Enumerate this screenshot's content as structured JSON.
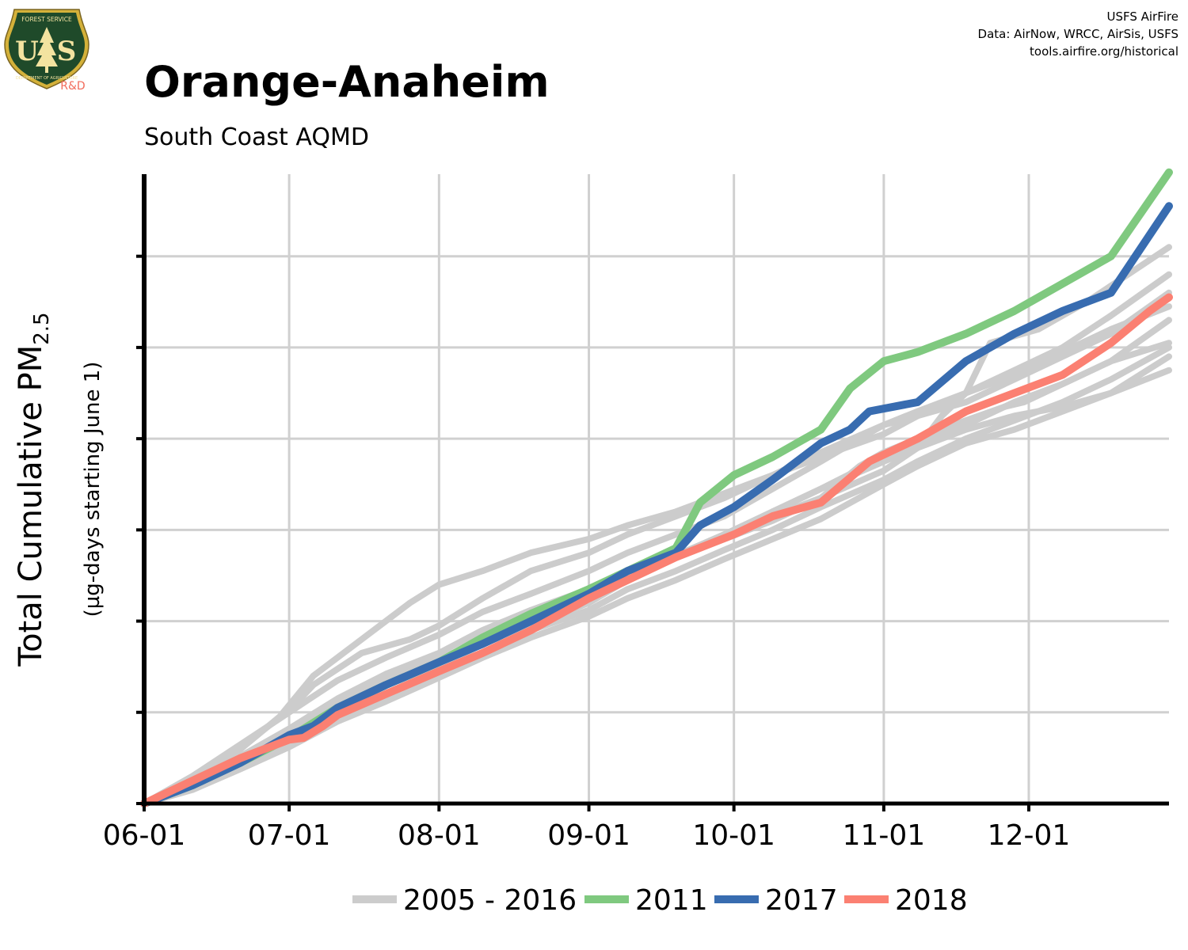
{
  "header": {
    "title": "Orange-Anaheim",
    "subtitle": "South Coast AQMD",
    "credits": [
      "USFS AirFire",
      "Data: AirNow, WRCC, AirSis, USFS",
      "tools.airfire.org/historical"
    ],
    "logo": {
      "name": "usfs-shield-logo",
      "top_text": "FOREST SERVICE",
      "letters": [
        "U",
        "S"
      ],
      "bottom_text": "DEPARTMENT OF AGRICULTURE",
      "badge": "R&D",
      "colors": {
        "shield": "#1f4a2a",
        "trim": "#d4b13a",
        "badge": "#f26b5b"
      }
    }
  },
  "chart_data": {
    "type": "line",
    "ylabel_main": "Total Cumulative PM",
    "ylabel_sub": "2.5",
    "ylabel_units": "(µg-days starting June 1)",
    "x_ticks": [
      "06-01",
      "07-01",
      "08-01",
      "09-01",
      "10-01",
      "11-01",
      "12-01"
    ],
    "x_tick_days": [
      0,
      30,
      61,
      92,
      122,
      153,
      183
    ],
    "xlim": [
      0,
      212
    ],
    "ylim": [
      0,
      6.9
    ],
    "y_gridlines": [
      1,
      2,
      3,
      4,
      5,
      6
    ],
    "y_tick_labels_shown": false,
    "grid": true,
    "legend_position": "bottom",
    "legend": [
      {
        "label": "2005 - 2016",
        "color": "#cccccc"
      },
      {
        "label": "2011",
        "color": "#7fc97f"
      },
      {
        "label": "2017",
        "color": "#386cb0"
      },
      {
        "label": "2018",
        "color": "#fb8072"
      }
    ],
    "background_series": [
      {
        "name": "2005 - 2016",
        "color": "#cccccc",
        "points": [
          [
            0,
            0
          ],
          [
            10,
            0.25
          ],
          [
            20,
            0.6
          ],
          [
            28,
            0.95
          ],
          [
            35,
            1.4
          ],
          [
            45,
            1.8
          ],
          [
            55,
            2.2
          ],
          [
            61,
            2.4
          ],
          [
            70,
            2.55
          ],
          [
            80,
            2.75
          ],
          [
            92,
            2.9
          ],
          [
            100,
            3.05
          ],
          [
            110,
            3.2
          ],
          [
            120,
            3.4
          ],
          [
            130,
            3.6
          ],
          [
            145,
            3.9
          ],
          [
            153,
            4.05
          ],
          [
            160,
            4.25
          ],
          [
            170,
            4.5
          ],
          [
            180,
            4.75
          ],
          [
            190,
            5.0
          ],
          [
            200,
            5.35
          ],
          [
            212,
            5.8
          ]
        ]
      },
      {
        "name": "2005 - 2016",
        "color": "#cccccc",
        "points": [
          [
            0,
            0
          ],
          [
            10,
            0.3
          ],
          [
            20,
            0.65
          ],
          [
            30,
            1.0
          ],
          [
            40,
            1.35
          ],
          [
            50,
            1.6
          ],
          [
            61,
            1.85
          ],
          [
            70,
            2.1
          ],
          [
            80,
            2.3
          ],
          [
            92,
            2.55
          ],
          [
            100,
            2.75
          ],
          [
            110,
            2.95
          ],
          [
            120,
            3.15
          ],
          [
            130,
            3.45
          ],
          [
            140,
            3.75
          ],
          [
            148,
            4.0
          ],
          [
            153,
            4.15
          ],
          [
            160,
            4.25
          ],
          [
            170,
            4.4
          ],
          [
            180,
            4.65
          ],
          [
            190,
            4.9
          ],
          [
            200,
            5.15
          ],
          [
            212,
            5.6
          ]
        ]
      },
      {
        "name": "2005 - 2016",
        "color": "#cccccc",
        "points": [
          [
            0,
            0
          ],
          [
            10,
            0.2
          ],
          [
            20,
            0.45
          ],
          [
            30,
            0.75
          ],
          [
            40,
            1.05
          ],
          [
            50,
            1.3
          ],
          [
            61,
            1.5
          ],
          [
            70,
            1.75
          ],
          [
            80,
            1.95
          ],
          [
            92,
            2.2
          ],
          [
            100,
            2.45
          ],
          [
            110,
            2.7
          ],
          [
            120,
            2.95
          ],
          [
            130,
            3.2
          ],
          [
            140,
            3.45
          ],
          [
            153,
            3.8
          ],
          [
            160,
            3.95
          ],
          [
            170,
            4.15
          ],
          [
            180,
            4.4
          ],
          [
            190,
            4.6
          ],
          [
            200,
            4.85
          ],
          [
            212,
            5.05
          ]
        ]
      },
      {
        "name": "2005 - 2016",
        "color": "#cccccc",
        "points": [
          [
            0,
            0
          ],
          [
            10,
            0.22
          ],
          [
            20,
            0.5
          ],
          [
            30,
            0.8
          ],
          [
            40,
            1.1
          ],
          [
            50,
            1.35
          ],
          [
            61,
            1.58
          ],
          [
            70,
            1.8
          ],
          [
            80,
            2.05
          ],
          [
            92,
            2.3
          ],
          [
            100,
            2.5
          ],
          [
            110,
            2.72
          ],
          [
            120,
            2.95
          ],
          [
            130,
            3.15
          ],
          [
            140,
            3.35
          ],
          [
            153,
            3.65
          ],
          [
            160,
            3.9
          ],
          [
            165,
            4.25
          ],
          [
            170,
            4.5
          ],
          [
            180,
            4.7
          ],
          [
            190,
            4.95
          ],
          [
            200,
            5.2
          ],
          [
            212,
            5.45
          ]
        ]
      },
      {
        "name": "2005 - 2016",
        "color": "#cccccc",
        "points": [
          [
            0,
            0
          ],
          [
            10,
            0.25
          ],
          [
            20,
            0.52
          ],
          [
            30,
            0.82
          ],
          [
            40,
            1.15
          ],
          [
            50,
            1.42
          ],
          [
            61,
            1.65
          ],
          [
            70,
            1.9
          ],
          [
            80,
            2.12
          ],
          [
            92,
            2.35
          ],
          [
            100,
            2.55
          ],
          [
            110,
            2.72
          ],
          [
            120,
            2.9
          ],
          [
            130,
            3.1
          ],
          [
            140,
            3.35
          ],
          [
            148,
            3.7
          ],
          [
            153,
            3.85
          ],
          [
            160,
            4.0
          ],
          [
            170,
            4.2
          ],
          [
            178,
            4.35
          ],
          [
            182,
            4.4
          ],
          [
            190,
            4.6
          ],
          [
            200,
            4.85
          ],
          [
            212,
            5.3
          ]
        ]
      },
      {
        "name": "2005 - 2016",
        "color": "#cccccc",
        "points": [
          [
            0,
            0
          ],
          [
            10,
            0.28
          ],
          [
            20,
            0.62
          ],
          [
            30,
            1.02
          ],
          [
            35,
            1.3
          ],
          [
            45,
            1.65
          ],
          [
            55,
            1.8
          ],
          [
            61,
            1.95
          ],
          [
            70,
            2.25
          ],
          [
            80,
            2.55
          ],
          [
            92,
            2.75
          ],
          [
            100,
            2.95
          ],
          [
            110,
            3.15
          ],
          [
            120,
            3.35
          ],
          [
            130,
            3.6
          ],
          [
            140,
            3.85
          ],
          [
            153,
            4.15
          ],
          [
            160,
            4.3
          ],
          [
            170,
            4.5
          ],
          [
            175,
            5.05
          ],
          [
            185,
            5.2
          ],
          [
            195,
            5.5
          ],
          [
            212,
            6.1
          ]
        ]
      },
      {
        "name": "2005 - 2016",
        "color": "#cccccc",
        "points": [
          [
            0,
            0
          ],
          [
            10,
            0.15
          ],
          [
            20,
            0.38
          ],
          [
            30,
            0.62
          ],
          [
            40,
            0.9
          ],
          [
            50,
            1.12
          ],
          [
            61,
            1.38
          ],
          [
            70,
            1.6
          ],
          [
            80,
            1.82
          ],
          [
            92,
            2.05
          ],
          [
            100,
            2.25
          ],
          [
            110,
            2.45
          ],
          [
            120,
            2.68
          ],
          [
            130,
            2.9
          ],
          [
            140,
            3.12
          ],
          [
            153,
            3.5
          ],
          [
            160,
            3.7
          ],
          [
            170,
            3.95
          ],
          [
            180,
            4.1
          ],
          [
            190,
            4.3
          ],
          [
            200,
            4.5
          ],
          [
            212,
            4.75
          ]
        ]
      },
      {
        "name": "2005 - 2016",
        "color": "#cccccc",
        "points": [
          [
            0,
            0
          ],
          [
            10,
            0.2
          ],
          [
            20,
            0.45
          ],
          [
            30,
            0.75
          ],
          [
            40,
            1.05
          ],
          [
            50,
            1.3
          ],
          [
            61,
            1.55
          ],
          [
            70,
            1.78
          ],
          [
            80,
            2.02
          ],
          [
            92,
            2.25
          ],
          [
            100,
            2.48
          ],
          [
            110,
            2.7
          ],
          [
            120,
            2.92
          ],
          [
            130,
            3.2
          ],
          [
            140,
            3.45
          ],
          [
            153,
            3.75
          ],
          [
            160,
            3.9
          ],
          [
            170,
            4.1
          ],
          [
            180,
            4.25
          ],
          [
            190,
            4.35
          ],
          [
            200,
            4.5
          ],
          [
            212,
            4.9
          ]
        ]
      },
      {
        "name": "2005 - 2016",
        "color": "#cccccc",
        "points": [
          [
            0,
            0
          ],
          [
            10,
            0.18
          ],
          [
            20,
            0.4
          ],
          [
            30,
            0.65
          ],
          [
            40,
            0.92
          ],
          [
            50,
            1.18
          ],
          [
            61,
            1.42
          ],
          [
            70,
            1.65
          ],
          [
            80,
            1.9
          ],
          [
            92,
            2.12
          ],
          [
            100,
            2.35
          ],
          [
            110,
            2.55
          ],
          [
            120,
            2.78
          ],
          [
            130,
            3.0
          ],
          [
            140,
            3.25
          ],
          [
            153,
            3.55
          ],
          [
            160,
            3.75
          ],
          [
            170,
            4.0
          ],
          [
            180,
            4.2
          ],
          [
            190,
            4.4
          ],
          [
            200,
            4.65
          ],
          [
            212,
            5.0
          ]
        ]
      }
    ],
    "series": [
      {
        "name": "2011",
        "color": "#7fc97f",
        "points": [
          [
            0,
            0
          ],
          [
            10,
            0.2
          ],
          [
            20,
            0.45
          ],
          [
            30,
            0.72
          ],
          [
            40,
            1.05
          ],
          [
            50,
            1.3
          ],
          [
            61,
            1.55
          ],
          [
            70,
            1.82
          ],
          [
            80,
            2.08
          ],
          [
            92,
            2.35
          ],
          [
            100,
            2.55
          ],
          [
            110,
            2.8
          ],
          [
            115,
            3.3
          ],
          [
            122,
            3.6
          ],
          [
            130,
            3.8
          ],
          [
            140,
            4.1
          ],
          [
            146,
            4.55
          ],
          [
            153,
            4.85
          ],
          [
            160,
            4.95
          ],
          [
            170,
            5.15
          ],
          [
            180,
            5.4
          ],
          [
            190,
            5.7
          ],
          [
            200,
            6.0
          ],
          [
            212,
            6.92
          ]
        ]
      },
      {
        "name": "2017",
        "color": "#386cb0",
        "points": [
          [
            0,
            0
          ],
          [
            10,
            0.2
          ],
          [
            20,
            0.45
          ],
          [
            30,
            0.75
          ],
          [
            35,
            0.85
          ],
          [
            40,
            1.05
          ],
          [
            50,
            1.3
          ],
          [
            61,
            1.55
          ],
          [
            70,
            1.75
          ],
          [
            80,
            2.0
          ],
          [
            92,
            2.3
          ],
          [
            100,
            2.55
          ],
          [
            110,
            2.75
          ],
          [
            115,
            3.05
          ],
          [
            122,
            3.25
          ],
          [
            130,
            3.55
          ],
          [
            140,
            3.95
          ],
          [
            146,
            4.1
          ],
          [
            150,
            4.3
          ],
          [
            160,
            4.4
          ],
          [
            170,
            4.85
          ],
          [
            180,
            5.15
          ],
          [
            190,
            5.4
          ],
          [
            200,
            5.6
          ],
          [
            212,
            6.55
          ]
        ]
      },
      {
        "name": "2018",
        "color": "#fb8072",
        "points": [
          [
            0,
            0
          ],
          [
            10,
            0.25
          ],
          [
            20,
            0.5
          ],
          [
            30,
            0.7
          ],
          [
            33,
            0.72
          ],
          [
            37,
            0.85
          ],
          [
            40,
            0.97
          ],
          [
            50,
            1.2
          ],
          [
            61,
            1.45
          ],
          [
            70,
            1.65
          ],
          [
            80,
            1.9
          ],
          [
            92,
            2.25
          ],
          [
            100,
            2.45
          ],
          [
            110,
            2.7
          ],
          [
            122,
            2.95
          ],
          [
            130,
            3.15
          ],
          [
            140,
            3.3
          ],
          [
            150,
            3.75
          ],
          [
            160,
            4.0
          ],
          [
            170,
            4.3
          ],
          [
            180,
            4.5
          ],
          [
            190,
            4.7
          ],
          [
            200,
            5.05
          ],
          [
            208,
            5.4
          ],
          [
            212,
            5.55
          ]
        ]
      }
    ]
  }
}
